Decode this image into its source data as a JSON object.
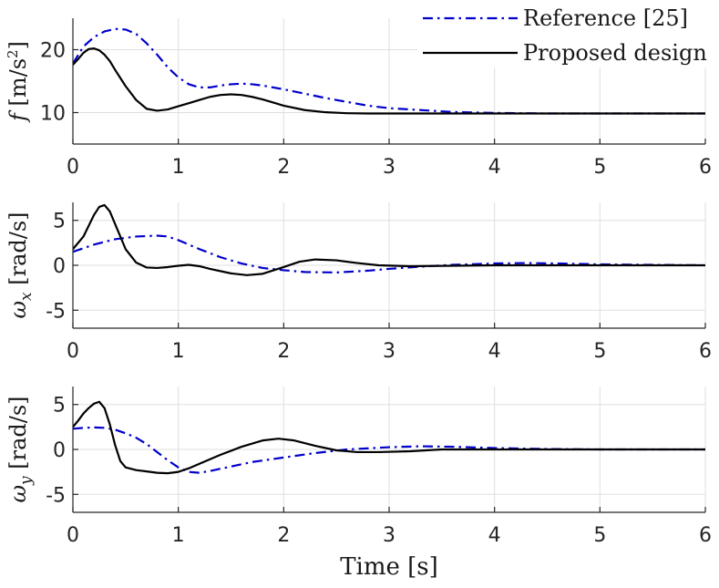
{
  "chart_data": [
    {
      "type": "line",
      "ylabel": {
        "sym": "f",
        "unit_pre": " [m/s",
        "sup": "2",
        "unit_post": "]"
      },
      "xlim": [
        0,
        6
      ],
      "ylim": [
        5,
        25
      ],
      "yticks": [
        10,
        20
      ],
      "xticks": [
        0,
        1,
        2,
        3,
        4,
        5,
        6
      ],
      "xtick_labels": [
        "0",
        "1",
        "2",
        "3",
        "4",
        "5",
        "6"
      ],
      "ytick_labels": [
        "10",
        "20"
      ],
      "grid": true,
      "legend": {
        "position": "top-right"
      },
      "series": [
        {
          "name": "Reference [25]",
          "style": "dashdot",
          "color": "#0000cc",
          "x": [
            0,
            0.1,
            0.2,
            0.3,
            0.4,
            0.5,
            0.6,
            0.7,
            0.8,
            0.9,
            1.0,
            1.1,
            1.2,
            1.3,
            1.4,
            1.5,
            1.6,
            1.7,
            1.8,
            2.0,
            2.2,
            2.4,
            2.6,
            2.8,
            3.0,
            3.3,
            3.6,
            4.0,
            4.5,
            5.0,
            5.5,
            6.0
          ],
          "y": [
            17.8,
            20.5,
            22.0,
            22.9,
            23.3,
            23.2,
            22.5,
            21.0,
            19.2,
            17.2,
            15.6,
            14.5,
            14.0,
            14.0,
            14.3,
            14.5,
            14.6,
            14.5,
            14.3,
            13.7,
            13.0,
            12.3,
            11.7,
            11.1,
            10.7,
            10.4,
            10.1,
            9.95,
            9.85,
            9.85,
            9.85,
            9.85
          ]
        },
        {
          "name": "Proposed design",
          "style": "solid",
          "color": "#000000",
          "x": [
            0,
            0.05,
            0.1,
            0.15,
            0.2,
            0.25,
            0.3,
            0.35,
            0.4,
            0.5,
            0.6,
            0.7,
            0.8,
            0.9,
            1.0,
            1.1,
            1.2,
            1.3,
            1.4,
            1.5,
            1.6,
            1.7,
            1.8,
            1.9,
            2.0,
            2.2,
            2.4,
            2.6,
            2.8,
            3.0,
            3.5,
            4.0,
            5.0,
            6.0
          ],
          "y": [
            17.6,
            18.5,
            19.5,
            20.1,
            20.2,
            19.9,
            19.2,
            18.2,
            16.8,
            14.2,
            12.0,
            10.6,
            10.3,
            10.5,
            11.0,
            11.5,
            12.0,
            12.5,
            12.8,
            12.9,
            12.8,
            12.5,
            12.1,
            11.6,
            11.1,
            10.4,
            10.05,
            9.9,
            9.85,
            9.85,
            9.85,
            9.85,
            9.85,
            9.85
          ]
        }
      ]
    },
    {
      "type": "line",
      "ylabel": {
        "sym": "ω",
        "sub": "x",
        "unit_post": " [rad/s]"
      },
      "xlim": [
        0,
        6
      ],
      "ylim": [
        -7,
        7
      ],
      "yticks": [
        -5,
        0,
        5
      ],
      "xticks": [
        0,
        1,
        2,
        3,
        4,
        5,
        6
      ],
      "xtick_labels": [
        "0",
        "1",
        "2",
        "3",
        "4",
        "5",
        "6"
      ],
      "ytick_labels": [
        "-5",
        "0",
        "5"
      ],
      "grid": true,
      "series": [
        {
          "name": "Reference [25]",
          "style": "dashdot",
          "color": "#0000cc",
          "x": [
            0,
            0.2,
            0.4,
            0.6,
            0.8,
            0.9,
            1.0,
            1.2,
            1.4,
            1.6,
            1.8,
            2.0,
            2.2,
            2.5,
            2.8,
            3.0,
            3.3,
            3.6,
            4.0,
            4.3,
            4.6,
            5.0,
            5.5,
            6.0
          ],
          "y": [
            1.5,
            2.3,
            2.9,
            3.2,
            3.3,
            3.2,
            2.8,
            1.8,
            0.9,
            0.2,
            -0.3,
            -0.55,
            -0.75,
            -0.8,
            -0.6,
            -0.4,
            -0.15,
            0.05,
            0.2,
            0.25,
            0.2,
            0.1,
            0.05,
            0.0
          ]
        },
        {
          "name": "Proposed design",
          "style": "solid",
          "color": "#000000",
          "x": [
            0,
            0.1,
            0.2,
            0.25,
            0.3,
            0.35,
            0.4,
            0.5,
            0.6,
            0.7,
            0.8,
            0.9,
            1.0,
            1.1,
            1.2,
            1.3,
            1.5,
            1.65,
            1.8,
            2.0,
            2.15,
            2.3,
            2.5,
            2.7,
            2.9,
            3.2,
            3.6,
            4.0,
            5.0,
            6.0
          ],
          "y": [
            1.8,
            3.2,
            5.6,
            6.5,
            6.7,
            6.0,
            4.6,
            1.8,
            0.3,
            -0.25,
            -0.3,
            -0.2,
            -0.05,
            0.05,
            -0.1,
            -0.4,
            -0.9,
            -1.1,
            -0.95,
            -0.2,
            0.4,
            0.65,
            0.55,
            0.25,
            0.0,
            -0.1,
            -0.05,
            0.0,
            0.0,
            0.0
          ]
        }
      ]
    },
    {
      "type": "line",
      "ylabel": {
        "sym": "ω",
        "sub": "y",
        "unit_post": " [rad/s]"
      },
      "xlim": [
        0,
        6
      ],
      "ylim": [
        -7,
        7
      ],
      "yticks": [
        -5,
        0,
        5
      ],
      "xticks": [
        0,
        1,
        2,
        3,
        4,
        5,
        6
      ],
      "xtick_labels": [
        "0",
        "1",
        "2",
        "3",
        "4",
        "5",
        "6"
      ],
      "ytick_labels": [
        "-5",
        "0",
        "5"
      ],
      "xlabel": "Time [s]",
      "grid": true,
      "series": [
        {
          "name": "Reference [25]",
          "style": "dashdot",
          "color": "#0000cc",
          "x": [
            0,
            0.1,
            0.2,
            0.3,
            0.4,
            0.5,
            0.6,
            0.7,
            0.8,
            0.9,
            1.0,
            1.1,
            1.2,
            1.3,
            1.5,
            1.7,
            2.0,
            2.3,
            2.6,
            3.0,
            3.3,
            3.6,
            4.0,
            4.5,
            5.0,
            6.0
          ],
          "y": [
            2.3,
            2.4,
            2.45,
            2.4,
            2.2,
            1.8,
            1.3,
            0.6,
            -0.3,
            -1.2,
            -2.0,
            -2.5,
            -2.6,
            -2.4,
            -1.9,
            -1.4,
            -0.9,
            -0.4,
            0.0,
            0.25,
            0.35,
            0.3,
            0.15,
            0.05,
            0.0,
            0.0
          ]
        },
        {
          "name": "Proposed design",
          "style": "solid",
          "color": "#000000",
          "x": [
            0,
            0.05,
            0.1,
            0.15,
            0.2,
            0.25,
            0.3,
            0.35,
            0.4,
            0.45,
            0.5,
            0.6,
            0.7,
            0.8,
            0.9,
            1.0,
            1.1,
            1.2,
            1.4,
            1.6,
            1.8,
            1.95,
            2.1,
            2.3,
            2.5,
            2.7,
            2.9,
            3.2,
            3.5,
            4.0,
            4.5,
            5.0,
            6.0
          ],
          "y": [
            2.5,
            3.2,
            4.0,
            4.6,
            5.1,
            5.3,
            4.6,
            2.8,
            0.5,
            -1.3,
            -2.0,
            -2.3,
            -2.45,
            -2.6,
            -2.65,
            -2.5,
            -2.1,
            -1.6,
            -0.6,
            0.3,
            1.0,
            1.2,
            1.0,
            0.4,
            -0.1,
            -0.3,
            -0.3,
            -0.2,
            0.0,
            0.0,
            0.0,
            0.0,
            0.0
          ]
        }
      ]
    }
  ]
}
